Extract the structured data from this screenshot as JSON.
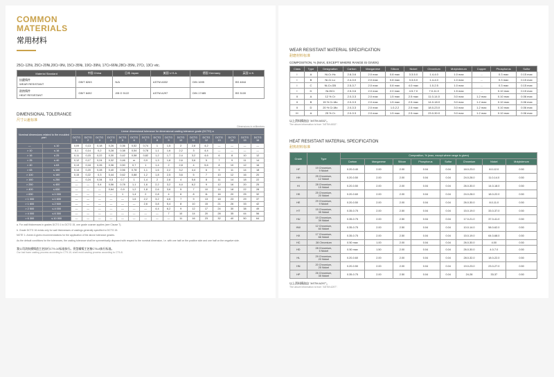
{
  "header": {
    "title_en_1": "COMMON",
    "title_en_2": "MATERIALS",
    "title_cn": "常用材料"
  },
  "left": {
    "alloy_list": "25Cr-12Ni, 25Cr-20Ni,20Cr-9Ni, 15Cr-35Ni, 19Cr-39Ni, 17Cr-66Ni,28Cr-35Ni, 27Cr, 13Cr etc.",
    "mat_table": {
      "headers": [
        "Material Standard",
        "中国 China",
        "日本 Japan",
        "美国 U.S.A.",
        "德国 Germany",
        "英国 U.K."
      ],
      "rows": [
        [
          "抗磨铸件\nWEAR RESISTANT",
          "GB/T 8263",
          "N/A",
          "ASTM A532",
          "DIN 1695",
          "BS 4844"
        ],
        [
          "耐热铸件\nHEAT RESISTANT",
          "GB/T 8492",
          "JIB G 5122",
          "ASTM A297",
          "DIN 17485",
          "BS 3100"
        ]
      ]
    },
    "dim_title": "DIMENSIONAL TOLERANCE",
    "dim_title_cn": "尺寸公差标准",
    "dim_unit": "Dimensions in millimetres",
    "dim_top_header": "Linear dimensional tolerance for dimensional casting tolerance grade (DCTG) a",
    "dim_side_header": "Nominal dimensions related to the moulded part",
    "dim_cols": [
      "DCTG 1",
      "DCTG 2",
      "DCTG 3",
      "DCTG 4",
      "DCTG 5",
      "DCTG 6",
      "DCTG 7",
      "DCTG 8",
      "DCTG 9",
      "DCTG 10",
      "DCTG 11",
      "DCTG 12",
      "DCTG 13",
      "DCTG 14",
      "DCTG 15",
      "DCTG 16"
    ],
    "dim_rows": [
      {
        "r": [
          "—",
          "≤ 10"
        ],
        "v": [
          "0,09",
          "0,13",
          "0,18",
          "0,26",
          "0,36",
          "0,52",
          "0,74",
          "1",
          "1,5",
          "2",
          "2,8",
          "4,2",
          "—",
          "—",
          "—",
          "—"
        ]
      },
      {
        "r": [
          "> 10",
          "≤ 16"
        ],
        "v": [
          "0,1",
          "0,14",
          "0,2",
          "0,28",
          "0,38",
          "0,54",
          "0,78",
          "1,1",
          "1,6",
          "2,2",
          "3",
          "4,4",
          "—",
          "—",
          "—",
          "—"
        ]
      },
      {
        "r": [
          "> 16",
          "≤ 25"
        ],
        "v": [
          "0,11",
          "0,15",
          "0,22",
          "0,30",
          "0,42",
          "0,58",
          "0,82",
          "1,2",
          "1,7",
          "2,4",
          "3,2",
          "4,6",
          "6",
          "8",
          "10",
          "12"
        ]
      },
      {
        "r": [
          "> 25",
          "≤ 40"
        ],
        "v": [
          "0,12",
          "0,17",
          "0,24",
          "0,32",
          "0,46",
          "m",
          "0,9",
          "1,3",
          "1,8",
          "2,6",
          "3,6",
          "5",
          "7",
          "9",
          "11",
          "14"
        ]
      },
      {
        "r": [
          "> 40",
          "≤ 63"
        ],
        "v": [
          "0,13",
          "0,18",
          "0,26",
          "0,36",
          "0,50",
          "0,7",
          "1",
          "1,4",
          "2",
          "2,8",
          "4",
          "5,6",
          "8",
          "10",
          "12",
          "16"
        ]
      },
      {
        "r": [
          "> 63",
          "≤ 100"
        ],
        "v": [
          "0,14",
          "0,20",
          "0,28",
          "0,40",
          "0,56",
          "0,78",
          "1,1",
          "1,6",
          "2,2",
          "3,2",
          "4,4",
          "6",
          "9",
          "11",
          "14",
          "18"
        ]
      },
      {
        "r": [
          "> 100",
          "≤ 160"
        ],
        "v": [
          "0,15",
          "0,22",
          "0,3",
          "0,44",
          "0,62",
          "0,88",
          "1,2",
          "1,8",
          "2,5",
          "3,6",
          "5",
          "7",
          "10",
          "12",
          "16",
          "20"
        ]
      },
      {
        "r": [
          "> 160",
          "≤ 250"
        ],
        "v": [
          "—",
          "0,24",
          "0,34",
          "0,5",
          "0,7",
          "1",
          "1,4",
          "2",
          "2,8",
          "4",
          "5,6",
          "8",
          "11",
          "14",
          "18",
          "22"
        ]
      },
      {
        "r": [
          "> 250",
          "≤ 400"
        ],
        "v": [
          "—",
          "—",
          "0,4",
          "0,56",
          "0,78",
          "1,1",
          "1,6",
          "2,2",
          "3,2",
          "4,4",
          "6,2",
          "9",
          "12",
          "16",
          "20",
          "25"
        ]
      },
      {
        "r": [
          "> 400",
          "≤ 630"
        ],
        "v": [
          "—",
          "—",
          "—",
          "0,64",
          "0,9",
          "1,2",
          "1,8",
          "2,6",
          "3,6",
          "5",
          "7",
          "10",
          "14",
          "18",
          "22",
          "28"
        ]
      },
      {
        "r": [
          "> 630",
          "≤ 1 000"
        ],
        "v": [
          "—",
          "—",
          "—",
          "—",
          "1",
          "1,4",
          "2",
          "2,8",
          "4",
          "6",
          "8",
          "11",
          "16",
          "20",
          "25",
          "32"
        ]
      },
      {
        "r": [
          "> 1 000",
          "≤ 1 600"
        ],
        "v": [
          "—",
          "—",
          "—",
          "—",
          "—",
          "1,6",
          "2,2",
          "3,2",
          "4,6",
          "7",
          "9",
          "13",
          "18",
          "23",
          "29",
          "37"
        ]
      },
      {
        "r": [
          "> 1 600",
          "≤ 2 500"
        ],
        "v": [
          "—",
          "—",
          "—",
          "—",
          "—",
          "—",
          "2,6",
          "3,8",
          "5,4",
          "8",
          "10",
          "15",
          "21",
          "26",
          "33",
          "42"
        ]
      },
      {
        "r": [
          "> 2 500",
          "≤ 4 000"
        ],
        "v": [
          "—",
          "—",
          "—",
          "—",
          "—",
          "—",
          "—",
          "4,4",
          "6,2",
          "9",
          "12",
          "17",
          "24",
          "30",
          "38",
          "49"
        ]
      },
      {
        "r": [
          "> 4 000",
          "≤ 6 300"
        ],
        "v": [
          "—",
          "—",
          "—",
          "—",
          "—",
          "—",
          "—",
          "—",
          "7",
          "10",
          "14",
          "20",
          "28",
          "35",
          "44",
          "56"
        ]
      },
      {
        "r": [
          "> 6 300",
          "≤ 10 000"
        ],
        "v": [
          "—",
          "—",
          "—",
          "—",
          "—",
          "—",
          "—",
          "—",
          "—",
          "11",
          "16",
          "23",
          "32",
          "40",
          "50",
          "64"
        ]
      }
    ],
    "note_a": "a. For wall thicknesses in grades DCTG 1 to DCTG 15, one grade coarser applies (see Clause 7).",
    "note_b": "b. Grade DCTG 16 exists only for wall thicknesses of castings generally specified to DCTG 15.",
    "note_c": "NOTE 1: Annex A gives recommendations for the application of the above tolerance grades.",
    "note_d": "As the default conditions for the tolerances, the casting tolerance shall be symmetrically disposed with respect to the nominal dimension, i.e. with one half on the positive side and one half on the negative side.",
    "foot_cn": "我公司消失模铸造工艺执行CT9-10标准执行。亮型精铸工艺按CT6-8执行标准。",
    "foot_en": "Our lost foam casting process according to CT9-10; shell mold casting process according to CT6-8."
  },
  "right": {
    "wear_title": "WEAR RESISTANT MATERIAL SPECIFICATION",
    "wear_title_cn": "耐磨材料标准",
    "wear_sub": "COMPOSITION, % (MAX, EXCEPT WHERE RANGE IS GIVEN)",
    "wear_headers": [
      "Class",
      "Type",
      "Designation",
      "Carbon",
      "Manganese",
      "Silicon",
      "Nickel",
      "Chromium",
      "Molybdenum",
      "Copper",
      "Phosphorus",
      "Sulfur"
    ],
    "wear_rows": [
      [
        "I",
        "A",
        "Ni-Cr-Hc",
        "2.8-3.6",
        "2.0 max",
        "0.8 max",
        "3.3-5.0",
        "1.4-4.0",
        "1.0 max",
        "...",
        "0.3 max",
        "0.15 max"
      ],
      [
        "I",
        "B",
        "Ni-Cr-Lc",
        "2.4-3.0",
        "2.0 max",
        "0.8 max",
        "3.3-5.0",
        "1.4-4.0",
        "1.0 max",
        "...",
        "0.3 max",
        "0.15 max"
      ],
      [
        "I",
        "C",
        "Ni-Cr-GB",
        "2.5-3.7",
        "2.0 max",
        "0.8 max",
        "4.0 max",
        "1.0-2.5",
        "1.0 max",
        "...",
        "0.3 max",
        "0.15 max"
      ],
      [
        "I",
        "D",
        "Ni-HiCr",
        "2.5-3.6",
        "2.0 max",
        "2.0 max",
        "4.5-7.0",
        "7.0-11.0",
        "1.5 max",
        "...",
        "0.10 max",
        "0.15 max"
      ],
      [
        "II",
        "A",
        "12 % Cr",
        "2.0-3.3",
        "2.0 max",
        "1.5 max",
        "2.5 max",
        "11.0-14.0",
        "3.0 max",
        "1.2 max",
        "0.10 max",
        "0.06 max"
      ],
      [
        "II",
        "B",
        "15 % Cr-Mo",
        "2.0-3.3",
        "2.0 max",
        "1.5 max",
        "2.5 max",
        "14.0-18.0",
        "3.0 max",
        "1.2 max",
        "0.10 max",
        "0.06 max"
      ],
      [
        "II",
        "D",
        "20 % Cr-Mo",
        "2.0-3.3",
        "2.0 max",
        "1.0-2.2",
        "2.5 max",
        "18.0-23.0",
        "3.0 max",
        "1.2 max",
        "0.10 max",
        "0.06 max"
      ],
      [
        "III",
        "A",
        "25 % Cr",
        "2.0-3.3",
        "2.0 max",
        "1.5 max",
        "2.5 max",
        "23.0-30.0",
        "3.0 max",
        "1.2 max",
        "0.10 max",
        "0.06 max"
      ]
    ],
    "wear_note_cn": "以上资料摘选自 \"ASTM A532\"。",
    "wear_note_en": "The above information is from \"ASTM A532\".",
    "heat_title": "HEAT RESISTANT MATERIAL SPECIFICATION",
    "heat_title_cn": "耐热材料标准",
    "heat_sub": "Composition, % (max, except where range is given)",
    "heat_headers": [
      "Grade",
      "Type",
      "Carbon",
      "Manganese",
      "Silicon",
      "Phosphorus",
      "Sulfur",
      "Chromium",
      "Nickel",
      "Molybdenum"
    ],
    "heat_rows": [
      [
        "HF",
        "19 Chromium,\n9 Nickel",
        "0.20-0.40",
        "2.00",
        "2.00",
        "0.04",
        "0.04",
        "18.0-23.0",
        "8.0-12.0",
        "0.50"
      ],
      [
        "HH",
        "25 Chromium,\n12 Nickel",
        "0.20-0.50",
        "2.00",
        "2.00",
        "0.04",
        "0.04",
        "24.0-28.0",
        "11.0-14.0",
        "0.50"
      ],
      [
        "HI",
        "28 Chromium,\n15 Nickel",
        "0.20-0.50",
        "2.00",
        "2.00",
        "0.04",
        "0.04",
        "26.0-30.0",
        "14.0-18.0",
        "0.50"
      ],
      [
        "HK",
        "25 Chromium,\n20 Nickel",
        "0.20-0.60",
        "2.00",
        "2.00",
        "0.04",
        "0.04",
        "24.0-28.0",
        "18.0-22.0",
        "0.50"
      ],
      [
        "HE",
        "29 Chromium,\n9 Nickel",
        "0.20-0.50",
        "2.00",
        "2.00",
        "0.04",
        "0.04",
        "26.0-30.0",
        "8.0-11.0",
        "0.50"
      ],
      [
        "HT",
        "15 Chromium,\n35 Nickel",
        "0.35-0.75",
        "2.00",
        "2.50",
        "0.04",
        "0.04",
        "15.0-19.0",
        "33.0-37.0",
        "0.50"
      ],
      [
        "HU",
        "19 Chromium,\n39 Nickel",
        "0.35-0.75",
        "2.00",
        "2.50",
        "0.04",
        "0.04",
        "17.0-21.0",
        "37.0-41.0",
        "0.50"
      ],
      [
        "HW",
        "12 Chromium,\n60 Nickel",
        "0.35-0.75",
        "2.00",
        "2.50",
        "0.04",
        "0.04",
        "10.0-14.0",
        "58.0-62.0",
        "0.50"
      ],
      [
        "HX",
        "17 Chromium,\n66 Nickel",
        "0.35-0.75",
        "2.00",
        "2.50",
        "0.04",
        "0.04",
        "15.0-19.0",
        "64.0-68.0",
        "0.50"
      ],
      [
        "HC",
        "28 Chromium",
        "0.50 max",
        "1.00",
        "2.00",
        "0.04",
        "0.04",
        "26.0-30.0",
        "4.00",
        "0.50"
      ],
      [
        "HD",
        "28 Chromium,\n5 Nickel",
        "0.50 max",
        "1.50",
        "2.00",
        "0.04",
        "0.04",
        "26.0-30.0",
        "4.0-7.0",
        "0.50"
      ],
      [
        "HL",
        "29 Chromium,\n20 Nickel",
        "0.20-0.60",
        "2.00",
        "2.00",
        "0.04",
        "0.04",
        "28.0-32.0",
        "18.0-22.0",
        "0.50"
      ],
      [
        "HN",
        "20 Chromium,\n25 Nickel",
        "0.20-0.50",
        "2.00",
        "2.00",
        "0.04",
        "0.04",
        "19.0-23.0",
        "23.0-27.0",
        "0.50"
      ],
      [
        "HP",
        "26 Chromium,\n35 Nickel",
        "0.35-0.75",
        "2.00",
        "2.50",
        "0.04",
        "0.04",
        "24-28",
        "33-37",
        "0.50"
      ]
    ],
    "heat_note_cn": "以上资料摘选自 \"ASTM A297\"。",
    "heat_note_en": "The above information is from \"ASTM A297\"."
  }
}
